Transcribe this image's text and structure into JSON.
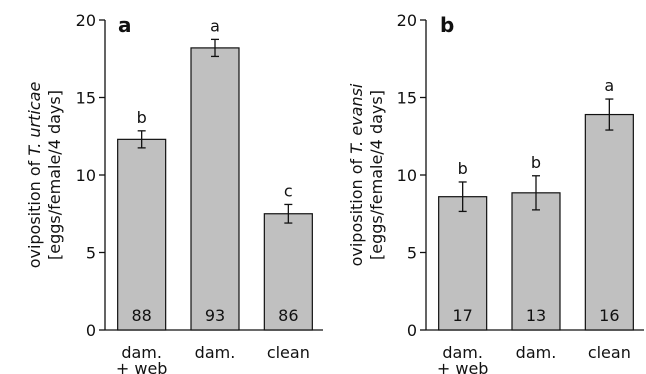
{
  "chart_data": [
    {
      "type": "bar",
      "panel_label": "a",
      "ylabel_line1_prefix": "oviposition of ",
      "ylabel_line1_italic": "T. urticae",
      "ylabel_line2": "[eggs/female/4 days]",
      "ylim": [
        0,
        20
      ],
      "yticks": [
        0,
        5,
        10,
        15,
        20
      ],
      "categories": [
        [
          "dam.",
          "+ web"
        ],
        [
          "dam."
        ],
        [
          "clean"
        ]
      ],
      "values": [
        12.3,
        18.2,
        7.5
      ],
      "errors": [
        0.55,
        0.55,
        0.6
      ],
      "letters": [
        "b",
        "a",
        "c"
      ],
      "n_labels": [
        "88",
        "93",
        "86"
      ],
      "bar_color": "#c0c0c0",
      "grid": false
    },
    {
      "type": "bar",
      "panel_label": "b",
      "ylabel_line1_prefix": "oviposition of ",
      "ylabel_line1_italic": "T. evansi",
      "ylabel_line2": "[eggs/female/4 days]",
      "ylim": [
        0,
        20
      ],
      "yticks": [
        0,
        5,
        10,
        15,
        20
      ],
      "categories": [
        [
          "dam.",
          "+ web"
        ],
        [
          "dam."
        ],
        [
          "clean"
        ]
      ],
      "values": [
        8.6,
        8.85,
        13.9
      ],
      "errors": [
        0.95,
        1.1,
        1.0
      ],
      "letters": [
        "b",
        "b",
        "a"
      ],
      "n_labels": [
        "17",
        "13",
        "16"
      ],
      "bar_color": "#c0c0c0",
      "grid": false
    }
  ]
}
